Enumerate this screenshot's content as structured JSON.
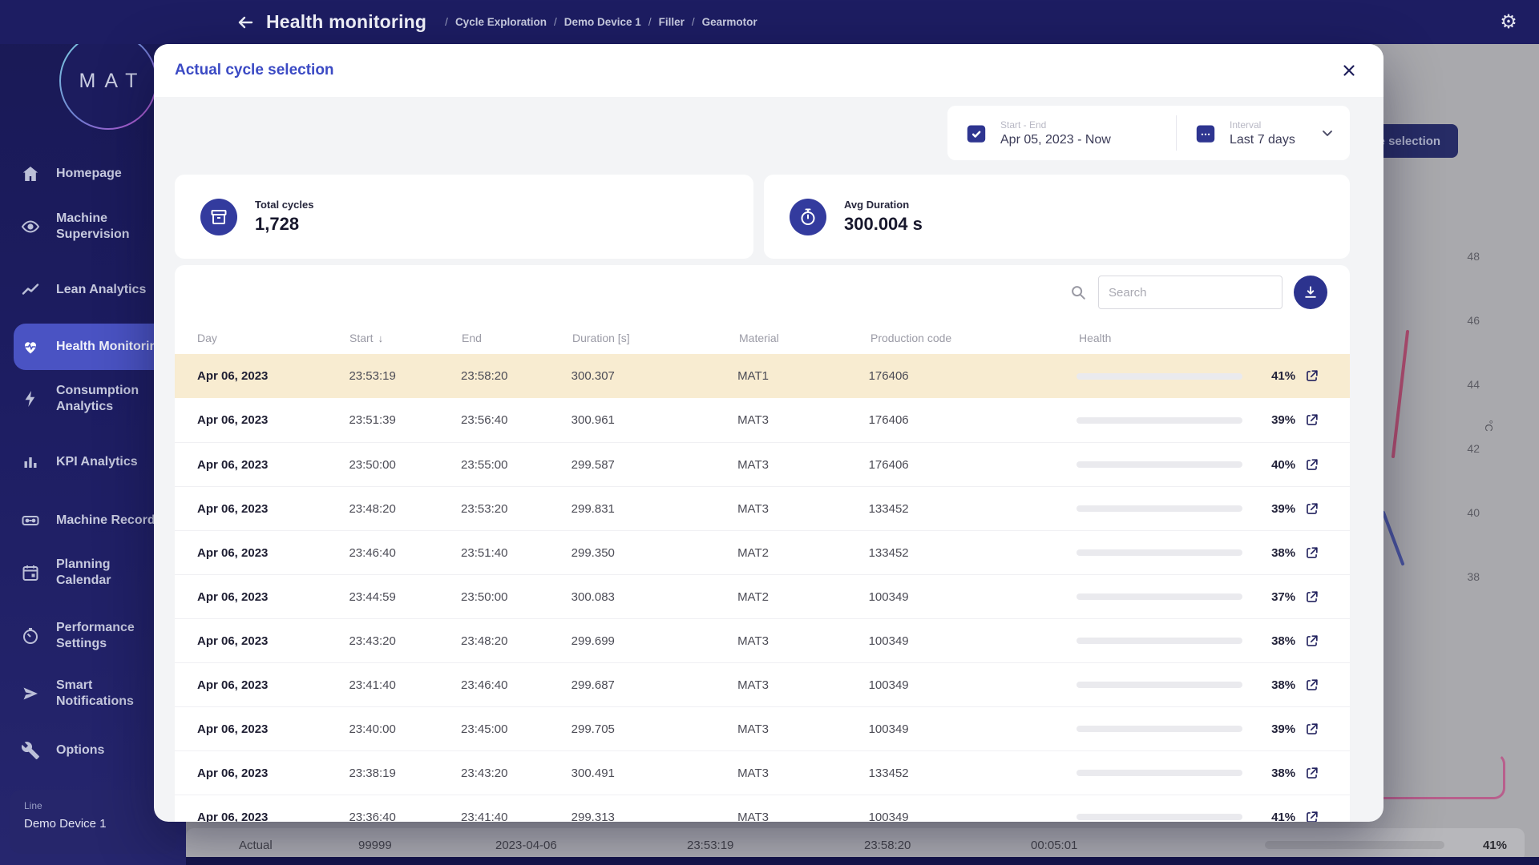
{
  "header": {
    "title": "Health monitoring",
    "breadcrumbs": [
      "Cycle Exploration",
      "Demo Device 1",
      "Filler",
      "Gearmotor"
    ]
  },
  "sidebar": {
    "logo_text": "MAT",
    "items": [
      "Homepage",
      "Machine Supervision",
      "Lean Analytics",
      "Health Monitoring",
      "Consumption Analytics",
      "KPI Analytics",
      "Machine Records",
      "Planning Calendar",
      "Performance Settings",
      "Smart Notifications",
      "Options"
    ],
    "active_item": "Health Monitoring",
    "device_label": "Line",
    "device_name": "Demo Device 1"
  },
  "page_background": {
    "saved_button_label": "Saved cycle selection",
    "chart_axis": {
      "ticks": [
        "48",
        "46",
        "44",
        "42",
        "40",
        "38"
      ],
      "unit": "°C"
    },
    "bottom_row": {
      "type": "Actual",
      "count": "99999",
      "date": "2023-04-06",
      "start": "23:53:19",
      "end": "23:58:20",
      "duration": "00:05:01",
      "health_pct": 41,
      "health_label": "41%"
    }
  },
  "modal": {
    "title": "Actual cycle selection",
    "filters": {
      "range_label": "Start - End",
      "range_value": "Apr 05, 2023 - Now",
      "interval_label": "Interval",
      "interval_value": "Last 7 days"
    },
    "stats": [
      {
        "label": "Total cycles",
        "value": "1,728"
      },
      {
        "label": "Avg Duration",
        "value": "300.004 s"
      }
    ],
    "search_placeholder": "Search",
    "table": {
      "columns": [
        "Day",
        "Start",
        "End",
        "Duration [s]",
        "Material",
        "Production code",
        "Health"
      ],
      "rows": [
        {
          "day": "Apr 06, 2023",
          "start": "23:53:19",
          "end": "23:58:20",
          "duration": "300.307",
          "material": "MAT1",
          "code": "176406",
          "health_pct": 41,
          "health_label": "41%",
          "bar_color": "#F2CB45",
          "highlighted": true
        },
        {
          "day": "Apr 06, 2023",
          "start": "23:51:39",
          "end": "23:56:40",
          "duration": "300.961",
          "material": "MAT3",
          "code": "176406",
          "health_pct": 39,
          "health_label": "39%",
          "bar_color": "#EFB03E",
          "highlighted": false
        },
        {
          "day": "Apr 06, 2023",
          "start": "23:50:00",
          "end": "23:55:00",
          "duration": "299.587",
          "material": "MAT3",
          "code": "176406",
          "health_pct": 40,
          "health_label": "40%",
          "bar_color": "#F2CB45",
          "highlighted": false
        },
        {
          "day": "Apr 06, 2023",
          "start": "23:48:20",
          "end": "23:53:20",
          "duration": "299.831",
          "material": "MAT3",
          "code": "133452",
          "health_pct": 39,
          "health_label": "39%",
          "bar_color": "#F2CB45",
          "highlighted": false
        },
        {
          "day": "Apr 06, 2023",
          "start": "23:46:40",
          "end": "23:51:40",
          "duration": "299.350",
          "material": "MAT2",
          "code": "133452",
          "health_pct": 38,
          "health_label": "38%",
          "bar_color": "#F2CB45",
          "highlighted": false
        },
        {
          "day": "Apr 06, 2023",
          "start": "23:44:59",
          "end": "23:50:00",
          "duration": "300.083",
          "material": "MAT2",
          "code": "100349",
          "health_pct": 37,
          "health_label": "37%",
          "bar_color": "#EFB03E",
          "highlighted": false
        },
        {
          "day": "Apr 06, 2023",
          "start": "23:43:20",
          "end": "23:48:20",
          "duration": "299.699",
          "material": "MAT3",
          "code": "100349",
          "health_pct": 38,
          "health_label": "38%",
          "bar_color": "#F2CB45",
          "highlighted": false
        },
        {
          "day": "Apr 06, 2023",
          "start": "23:41:40",
          "end": "23:46:40",
          "duration": "299.687",
          "material": "MAT3",
          "code": "100349",
          "health_pct": 38,
          "health_label": "38%",
          "bar_color": "#F2CB45",
          "highlighted": false
        },
        {
          "day": "Apr 06, 2023",
          "start": "23:40:00",
          "end": "23:45:00",
          "duration": "299.705",
          "material": "MAT3",
          "code": "100349",
          "health_pct": 39,
          "health_label": "39%",
          "bar_color": "#F2CB45",
          "highlighted": false
        },
        {
          "day": "Apr 06, 2023",
          "start": "23:38:19",
          "end": "23:43:20",
          "duration": "300.491",
          "material": "MAT3",
          "code": "133452",
          "health_pct": 38,
          "health_label": "38%",
          "bar_color": "#EFB03E",
          "highlighted": false
        },
        {
          "day": "Apr 06, 2023",
          "start": "23:36:40",
          "end": "23:41:40",
          "duration": "299.313",
          "material": "MAT3",
          "code": "100349",
          "health_pct": 41,
          "health_label": "41%",
          "bar_color": "#F2CB45",
          "highlighted": false
        }
      ]
    }
  }
}
